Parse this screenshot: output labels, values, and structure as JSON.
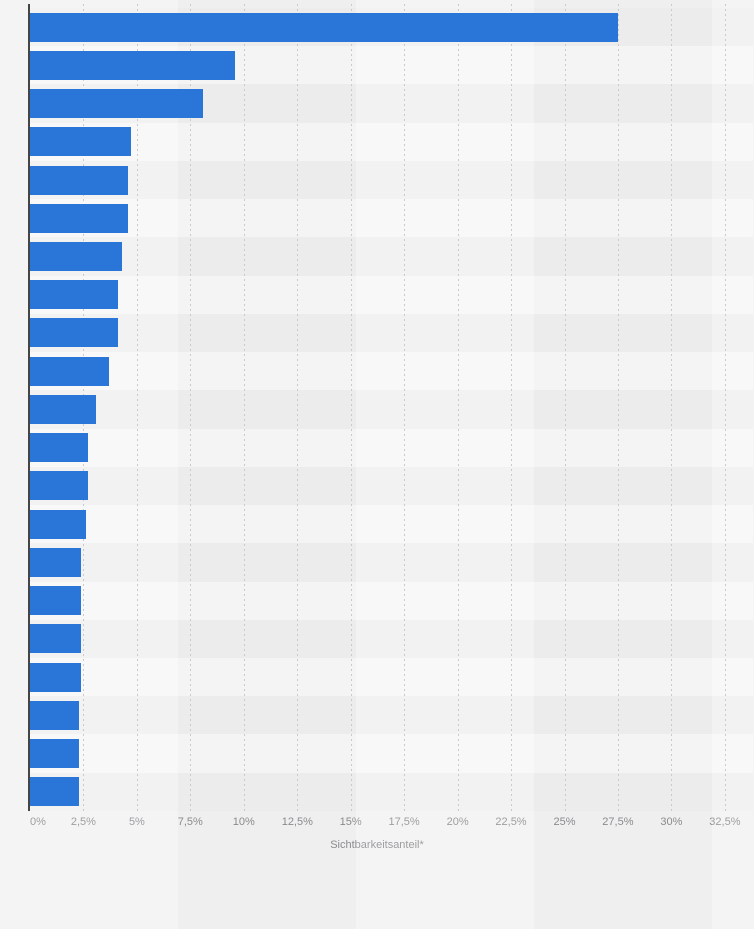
{
  "page": {
    "background": "#f2f2f3"
  },
  "chart_data": {
    "type": "bar",
    "orientation": "horizontal",
    "title": "",
    "xlabel": "Sichtbarkeitsanteil*",
    "ylabel": "",
    "category_labels_visible": false,
    "values": [
      27.5,
      9.6,
      8.1,
      4.7,
      4.6,
      4.6,
      4.3,
      4.1,
      4.1,
      3.7,
      3.1,
      2.7,
      2.7,
      2.6,
      2.4,
      2.4,
      2.4,
      2.4,
      2.3,
      2.3,
      2.3
    ],
    "unit": "%",
    "xlim": [
      0,
      33.8
    ],
    "tick_values": [
      0,
      2.5,
      5,
      7.5,
      10,
      12.5,
      15,
      17.5,
      20,
      22.5,
      25,
      27.5,
      30,
      32.5
    ],
    "tick_labels": [
      "0%",
      "2,5%",
      "5%",
      "7,5%",
      "10%",
      "12,5%",
      "15%",
      "17,5%",
      "20%",
      "22,5%",
      "25%",
      "27,5%",
      "30%",
      "32,5%"
    ],
    "grid": "vertical-dashed",
    "legend": false,
    "colors": {
      "bar": "#2a76d8",
      "row_stripe_dark": "#efeff0",
      "row_stripe_light": "#f7f7f8",
      "axis_line": "#454547",
      "gridline": "#c9c9ce",
      "tick_label": "#8c8c8e"
    }
  }
}
